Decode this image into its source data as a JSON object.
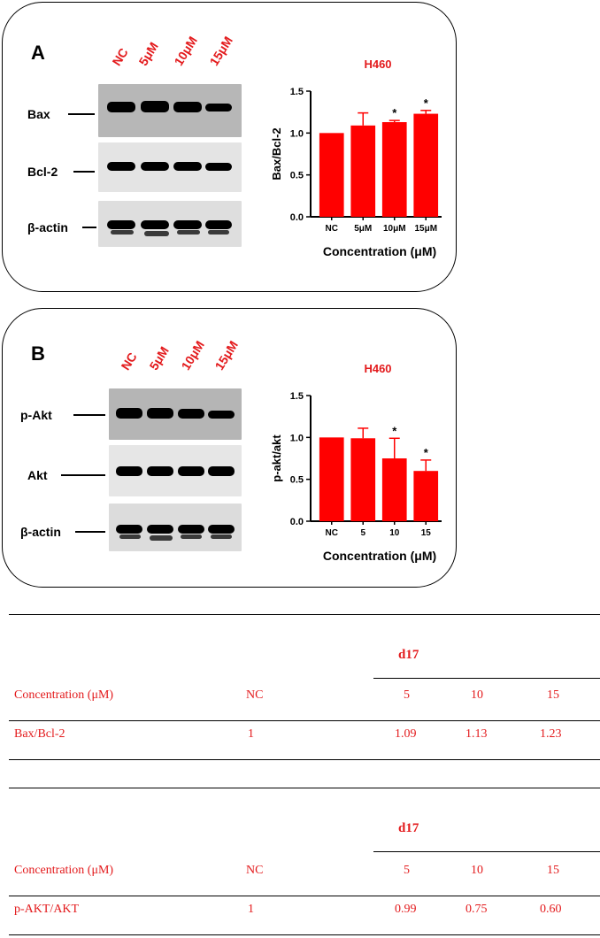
{
  "panelA": {
    "letter": "A",
    "lanes": [
      "NC",
      "5μM",
      "10μM",
      "15μM"
    ],
    "rows": [
      "Bax",
      "Bcl-2",
      "β-actin"
    ],
    "chart_data": {
      "type": "bar",
      "title": "H460",
      "categories": [
        "NC",
        "5μM",
        "10μM",
        "15μM"
      ],
      "values": [
        1.0,
        1.09,
        1.13,
        1.23
      ],
      "errors": [
        0,
        0.15,
        0.02,
        0.04
      ],
      "significance": [
        "",
        "",
        "*",
        "*"
      ],
      "xlabel": "Concentration (μM)",
      "ylabel": "Bax/Bcl-2",
      "ylim": [
        0,
        1.5
      ],
      "yticks": [
        "0.0",
        "0.5",
        "1.0",
        "1.5"
      ],
      "color": "#ff0000"
    }
  },
  "panelB": {
    "letter": "B",
    "lanes": [
      "NC",
      "5μM",
      "10μM",
      "15μM"
    ],
    "rows": [
      "p-Akt",
      "Akt",
      "β-actin"
    ],
    "chart_data": {
      "type": "bar",
      "title": "H460",
      "categories": [
        "NC",
        "5",
        "10",
        "15"
      ],
      "values": [
        1.0,
        0.99,
        0.75,
        0.6
      ],
      "errors": [
        0,
        0.12,
        0.24,
        0.13
      ],
      "significance": [
        "",
        "",
        "*",
        "*"
      ],
      "xlabel": "Concentration (μM)",
      "ylabel": "p-akt/akt",
      "ylim": [
        0,
        1.5
      ],
      "yticks": [
        "0.0",
        "0.5",
        "1.0",
        "1.5"
      ],
      "color": "#ff0000"
    }
  },
  "tables": [
    {
      "group": "d17",
      "header": [
        "Concentration (μM)",
        "NC",
        "5",
        "10",
        "15"
      ],
      "row": [
        "Bax/Bcl-2",
        "1",
        "1.09",
        "1.13",
        "1.23"
      ]
    },
    {
      "group": "d17",
      "header": [
        "Concentration (μM)",
        "NC",
        "5",
        "10",
        "15"
      ],
      "row": [
        "p-AKT/AKT",
        "1",
        "0.99",
        "0.75",
        "0.60"
      ]
    }
  ]
}
